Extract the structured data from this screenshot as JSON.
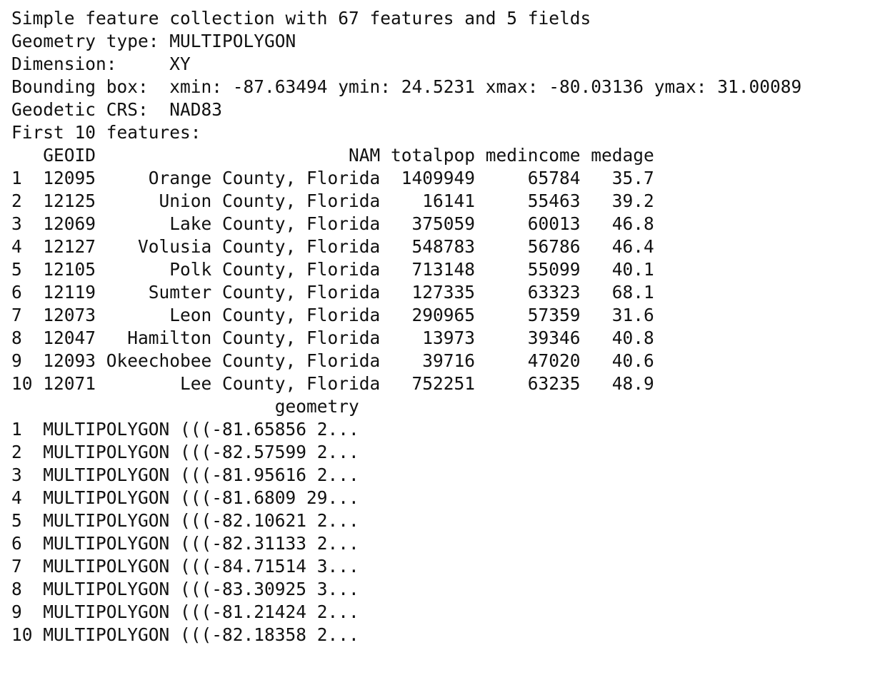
{
  "console": {
    "header_lines": [
      "Simple feature collection with 67 features and 5 fields",
      "Geometry type: MULTIPOLYGON",
      "Dimension:     XY",
      "Bounding box:  xmin: -87.63494 ymin: 24.5231 xmax: -80.03136 ymax: 31.00089",
      "Geodetic CRS:  NAD83",
      "First 10 features:"
    ],
    "table_header": "   GEOID                        NAM totalpop medincome medage",
    "table_rows": [
      "1  12095     Orange County, Florida  1409949     65784   35.7",
      "2  12125      Union County, Florida    16141     55463   39.2",
      "3  12069       Lake County, Florida   375059     60013   46.8",
      "4  12127    Volusia County, Florida   548783     56786   46.4",
      "5  12105       Polk County, Florida   713148     55099   40.1",
      "6  12119     Sumter County, Florida   127335     63323   68.1",
      "7  12073       Leon County, Florida   290965     57359   31.6",
      "8  12047   Hamilton County, Florida    13973     39346   40.8",
      "9  12093 Okeechobee County, Florida    39716     47020   40.6",
      "10 12071        Lee County, Florida   752251     63235   48.9"
    ],
    "geometry_header": "                         geometry",
    "geometry_rows": [
      "1  MULTIPOLYGON (((-81.65856 2...",
      "2  MULTIPOLYGON (((-82.57599 2...",
      "3  MULTIPOLYGON (((-81.95616 2...",
      "4  MULTIPOLYGON (((-81.6809 29...",
      "5  MULTIPOLYGON (((-82.10621 2...",
      "6  MULTIPOLYGON (((-82.31133 2...",
      "7  MULTIPOLYGON (((-84.71514 3...",
      "8  MULTIPOLYGON (((-83.30925 3...",
      "9  MULTIPOLYGON (((-81.21424 2...",
      "10 MULTIPOLYGON (((-82.18358 2..."
    ]
  }
}
